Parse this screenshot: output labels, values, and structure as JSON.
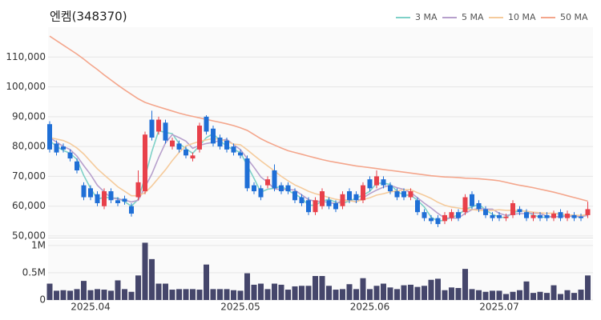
{
  "chart_data": [
    {
      "type": "candlestick",
      "title": "엔켐(348370)",
      "categories": [
        null,
        null,
        null,
        null,
        null,
        null,
        "2025.04",
        null,
        null,
        null,
        null,
        null,
        null,
        null,
        null,
        null,
        null,
        null,
        null,
        null,
        null,
        null,
        null,
        null,
        null,
        null,
        null,
        null,
        "2025.05",
        null,
        null,
        null,
        null,
        null,
        null,
        null,
        null,
        null,
        null,
        null,
        null,
        null,
        null,
        null,
        null,
        null,
        null,
        "2025.06",
        null,
        null,
        null,
        null,
        null,
        null,
        null,
        null,
        null,
        null,
        null,
        null,
        null,
        null,
        null,
        null,
        null,
        null,
        "2025.07",
        null,
        null,
        null,
        null,
        null,
        null,
        null,
        null,
        null,
        null,
        null,
        null,
        null
      ],
      "open": [
        87500,
        81000,
        80000,
        78000,
        75000,
        67000,
        66000,
        64000,
        60000,
        65000,
        62000,
        62500,
        60000,
        63000,
        65000,
        89000,
        85000,
        88000,
        80000,
        81000,
        79000,
        76000,
        79000,
        90000,
        86000,
        83000,
        82000,
        80000,
        78000,
        76000,
        67000,
        66000,
        67000,
        72000,
        67000,
        67000,
        65000,
        63000,
        62000,
        58000,
        60000,
        62000,
        61000,
        60000,
        65000,
        64000,
        62000,
        69000,
        67000,
        69000,
        67000,
        65000,
        65000,
        63000,
        62000,
        58000,
        56000,
        56000,
        55000,
        56000,
        58000,
        58000,
        64000,
        61000,
        59000,
        57000,
        57000,
        56000,
        57000,
        59000,
        58000,
        56000,
        57000,
        57000,
        56000,
        58000,
        56000,
        57000,
        56500,
        57000
      ],
      "high": [
        88500,
        82000,
        81000,
        79000,
        76000,
        68000,
        67000,
        65000,
        66000,
        66000,
        63000,
        63500,
        61000,
        72000,
        85000,
        92000,
        90000,
        89000,
        83000,
        82000,
        80000,
        78000,
        88000,
        90500,
        87000,
        84000,
        83000,
        81000,
        79000,
        77000,
        68000,
        67000,
        70000,
        74000,
        68000,
        68000,
        66000,
        64000,
        63000,
        63000,
        66000,
        63000,
        62000,
        65000,
        66000,
        65000,
        68000,
        70000,
        72000,
        70000,
        68000,
        66000,
        66000,
        66000,
        63000,
        59000,
        57000,
        57000,
        58000,
        59000,
        59000,
        64000,
        65000,
        62000,
        60000,
        58000,
        58000,
        57500,
        62000,
        60000,
        59000,
        58000,
        58000,
        58000,
        58500,
        59000,
        58500,
        58000,
        57500,
        61500
      ],
      "low": [
        78000,
        77000,
        78000,
        75000,
        71000,
        62000,
        62000,
        60000,
        59000,
        61000,
        60000,
        60500,
        56500,
        62000,
        64000,
        82000,
        84000,
        81000,
        79000,
        78000,
        76000,
        75000,
        78000,
        84000,
        80000,
        79000,
        78000,
        77000,
        76000,
        65000,
        64000,
        62000,
        66000,
        65000,
        64000,
        64000,
        61000,
        60000,
        57000,
        57000,
        59000,
        59000,
        58000,
        59000,
        61000,
        61000,
        61000,
        65000,
        66000,
        66000,
        64000,
        62000,
        62000,
        62000,
        57000,
        55000,
        54000,
        53000,
        54000,
        55000,
        55000,
        57000,
        59000,
        58000,
        56000,
        55000,
        55000,
        55000,
        56000,
        57000,
        55000,
        55000,
        55000,
        55000,
        55000,
        55000,
        55000,
        55000,
        55000,
        56000
      ],
      "close": [
        79000,
        78000,
        79000,
        76000,
        72000,
        63000,
        63000,
        61000,
        65000,
        62000,
        61000,
        61500,
        57500,
        68000,
        84000,
        83000,
        89000,
        82000,
        82000,
        79000,
        77000,
        77000,
        87000,
        85000,
        81000,
        80000,
        79000,
        78000,
        77000,
        66000,
        65000,
        63000,
        69000,
        66000,
        65000,
        65000,
        62000,
        61000,
        58000,
        62000,
        65000,
        60000,
        59000,
        64000,
        62000,
        62000,
        67000,
        66000,
        70000,
        67000,
        65000,
        63000,
        63000,
        65000,
        58000,
        56000,
        55000,
        54000,
        57000,
        58000,
        56000,
        63000,
        60000,
        59000,
        57000,
        56000,
        56000,
        56500,
        61000,
        58000,
        56000,
        57000,
        56000,
        56000,
        57500,
        56000,
        57500,
        56000,
        56000,
        59000
      ],
      "up_color": "#e8404a",
      "down_color": "#1f6fd6",
      "series": [
        {
          "name": "3 MA",
          "color": "#7fd1c8",
          "values": [
            82000,
            80000,
            78700,
            77700,
            75700,
            70300,
            66000,
            62300,
            63000,
            62700,
            62700,
            61500,
            60000,
            62300,
            69800,
            78300,
            85300,
            84700,
            84300,
            81000,
            79300,
            77700,
            80300,
            83000,
            84300,
            82000,
            80000,
            79000,
            78000,
            73700,
            69300,
            64700,
            65700,
            66000,
            66700,
            65300,
            64000,
            62700,
            60300,
            60300,
            61700,
            62300,
            61300,
            61000,
            61700,
            62700,
            63700,
            65000,
            67700,
            67700,
            67300,
            65000,
            63700,
            63700,
            62000,
            59700,
            56300,
            55000,
            55300,
            56300,
            57000,
            59000,
            59700,
            60700,
            58700,
            57300,
            56300,
            56200,
            57800,
            58500,
            58300,
            57000,
            56300,
            56300,
            56500,
            56500,
            57000,
            56500,
            56500,
            57000
          ]
        },
        {
          "name": "5 MA",
          "color": "#b7a0cc",
          "values": [
            83000,
            81500,
            80000,
            79000,
            76800,
            73600,
            70600,
            67000,
            64800,
            62800,
            62400,
            62100,
            61400,
            62000,
            66400,
            70800,
            76300,
            81200,
            84000,
            83000,
            81800,
            79400,
            80400,
            81000,
            81400,
            82000,
            82400,
            80600,
            79000,
            76000,
            73000,
            69800,
            68000,
            65800,
            65600,
            65600,
            65400,
            63800,
            62200,
            61600,
            61600,
            61200,
            60800,
            62000,
            62000,
            61400,
            62800,
            64200,
            65400,
            66400,
            67000,
            66200,
            65600,
            64600,
            62800,
            61000,
            59400,
            57600,
            56000,
            56000,
            56000,
            57600,
            58800,
            59200,
            59000,
            59000,
            57600,
            56900,
            57300,
            57500,
            57500,
            57700,
            57600,
            56600,
            56500,
            56500,
            56600,
            56600,
            56600,
            56900
          ]
        },
        {
          "name": "10 MA",
          "color": "#f5cb9c",
          "values": [
            83000,
            82500,
            82000,
            81000,
            79500,
            77500,
            75000,
            72500,
            70500,
            68500,
            66500,
            65000,
            63500,
            63500,
            64500,
            66800,
            69500,
            72200,
            75300,
            78000,
            80200,
            81000,
            81700,
            82200,
            82700,
            82400,
            81700,
            80800,
            80600,
            78900,
            77000,
            75200,
            73500,
            71800,
            70000,
            68500,
            67100,
            66100,
            65000,
            64200,
            63600,
            62900,
            62300,
            61900,
            61800,
            61500,
            62200,
            62800,
            63700,
            64200,
            64800,
            65100,
            65500,
            65500,
            64500,
            63600,
            62600,
            61300,
            60300,
            59700,
            59400,
            59000,
            58900,
            58600,
            58500,
            58600,
            58800,
            58600,
            58600,
            58500,
            58300,
            58000,
            57800,
            57600,
            57700,
            57300,
            57100,
            57000,
            56900,
            57200
          ]
        },
        {
          "name": "50 MA",
          "color": "#f4a68c",
          "values": [
            117000,
            115500,
            114000,
            112500,
            111000,
            109300,
            107500,
            105800,
            104000,
            102300,
            100600,
            99000,
            97500,
            96000,
            94800,
            94000,
            93300,
            92600,
            91900,
            91200,
            90600,
            90100,
            89600,
            89100,
            88600,
            88100,
            87600,
            87000,
            86300,
            85400,
            84000,
            82600,
            81500,
            80500,
            79500,
            78600,
            78000,
            77400,
            76800,
            76200,
            75600,
            75100,
            74700,
            74300,
            73900,
            73500,
            73200,
            72900,
            72600,
            72300,
            72000,
            71700,
            71400,
            71100,
            70800,
            70500,
            70200,
            70000,
            69800,
            69700,
            69600,
            69400,
            69300,
            69200,
            69000,
            68800,
            68500,
            68000,
            67500,
            67000,
            66600,
            66200,
            65700,
            65200,
            64700,
            64100,
            63500,
            62900,
            62300,
            61700
          ]
        }
      ],
      "ylim": [
        50000,
        120000
      ],
      "yticks": [
        {
          "value": 50000,
          "label": "50,000"
        },
        {
          "value": 60000,
          "label": "60,000"
        },
        {
          "value": 70000,
          "label": "70,000"
        },
        {
          "value": 80000,
          "label": "80,000"
        },
        {
          "value": 90000,
          "label": "90,000"
        },
        {
          "value": 100000,
          "label": "100,000"
        },
        {
          "value": 110000,
          "label": "110,000"
        }
      ],
      "grid": true,
      "legend": "top-right"
    },
    {
      "type": "bar",
      "color": "#45466b",
      "values": [
        300000,
        170000,
        180000,
        170000,
        200000,
        350000,
        180000,
        200000,
        190000,
        170000,
        360000,
        200000,
        150000,
        450000,
        1050000,
        750000,
        300000,
        300000,
        190000,
        200000,
        200000,
        200000,
        190000,
        650000,
        200000,
        200000,
        200000,
        180000,
        170000,
        490000,
        280000,
        300000,
        200000,
        300000,
        280000,
        190000,
        250000,
        260000,
        260000,
        440000,
        440000,
        260000,
        190000,
        200000,
        290000,
        200000,
        400000,
        200000,
        260000,
        300000,
        230000,
        200000,
        270000,
        280000,
        240000,
        260000,
        370000,
        390000,
        180000,
        230000,
        220000,
        570000,
        200000,
        180000,
        150000,
        170000,
        170000,
        110000,
        150000,
        180000,
        340000,
        130000,
        150000,
        130000,
        270000,
        110000,
        180000,
        130000,
        190000,
        450000
      ],
      "ylim": [
        0,
        1100000
      ],
      "yticks": [
        0,
        {
          "value": 500000,
          "label": "0.5M"
        },
        {
          "value": 1000000,
          "label": "1M"
        }
      ]
    }
  ]
}
